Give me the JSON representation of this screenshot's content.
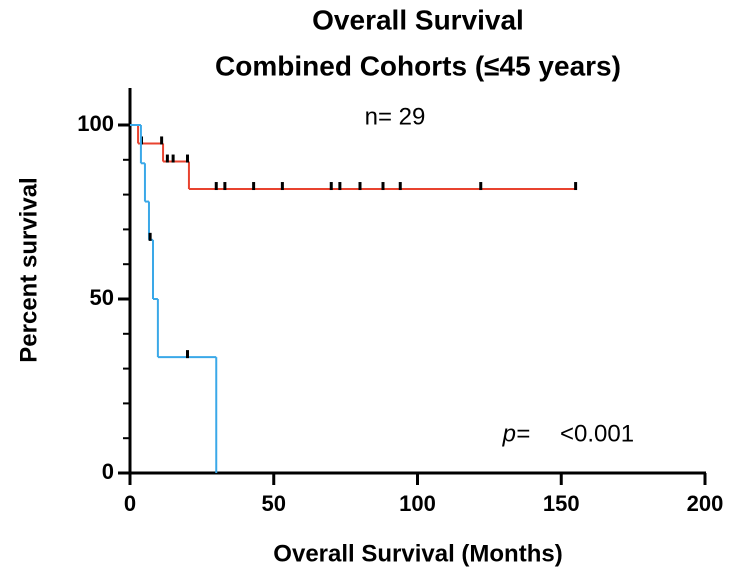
{
  "chart_data": {
    "type": "survival",
    "title": [
      "Overall Survival",
      "Combined Cohorts (≤45 years)"
    ],
    "annotation": "n= 29",
    "p_label": "p=",
    "p_value": "<0.001",
    "xlabel": "Overall Survival (Months)",
    "ylabel": "Percent survival",
    "xlim": [
      0,
      200
    ],
    "xticks": [
      0,
      50,
      100,
      150,
      200
    ],
    "ylim": [
      0,
      100
    ],
    "yticks": [
      0,
      50,
      100
    ],
    "yminorticks": [
      10,
      20,
      30,
      40,
      60,
      70,
      80,
      90
    ],
    "series": [
      {
        "color": "#e8432f",
        "x": [
          0,
          2.8,
          11.5,
          20.5,
          155
        ],
        "values": [
          100,
          94.7,
          89.5,
          81.6,
          81.6
        ],
        "censor_x": [
          4,
          11,
          13,
          15,
          20,
          30,
          33,
          43,
          53,
          70,
          73,
          80,
          88,
          94,
          122,
          155
        ],
        "censor_values": [
          94.7,
          94.7,
          89.5,
          89.5,
          89.5,
          81.6,
          81.6,
          81.6,
          81.6,
          81.6,
          81.6,
          81.6,
          81.6,
          81.6,
          81.6,
          81.6
        ]
      },
      {
        "color": "#3aa8e8",
        "x": [
          0,
          3.8,
          5.2,
          6.6,
          8,
          9.7,
          30
        ],
        "values": [
          100,
          89,
          78,
          67,
          50,
          33.3,
          0
        ],
        "censor_x": [
          7,
          20
        ],
        "censor_values": [
          67,
          33.3
        ]
      }
    ]
  }
}
